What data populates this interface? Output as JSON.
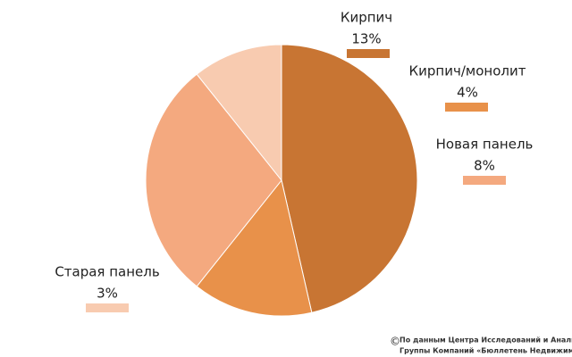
{
  "chart_data": {
    "type": "pie",
    "categories": [
      "Кирпич",
      "Кирпич/монолит",
      "Новая панель",
      "Старая панель"
    ],
    "values": [
      13,
      4,
      8,
      3
    ],
    "value_labels": [
      "13%",
      "4%",
      "8%",
      "3%"
    ],
    "colors": [
      "#c87533",
      "#e8914a",
      "#f4a97f",
      "#f8cbb0"
    ],
    "copyright": "©",
    "source": [
      "По данным Центра Исследований и Аналитики",
      "Группы Компаний «Бюллетень Недвижимости»"
    ]
  }
}
